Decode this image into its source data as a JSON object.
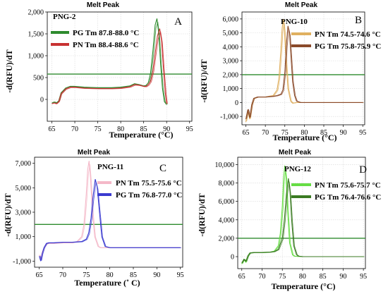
{
  "chart_data": [
    {
      "type": "line",
      "title": "Melt Peak",
      "panel_letter": "A",
      "sample_label": "PNG-2",
      "xlabel": "Temperature (°C)",
      "ylabel": "-d(RFU)/dT",
      "xlim": [
        64,
        95.5
      ],
      "ylim": [
        -500,
        2000
      ],
      "xticks": [
        65,
        70,
        75,
        80,
        85,
        90,
        95
      ],
      "yticks": [
        0,
        500,
        1000,
        1500,
        2000
      ],
      "ytick_labels": [
        "0",
        "500",
        "1,000",
        "1,500",
        "2,000"
      ],
      "threshold": 580,
      "grid": true,
      "legend_position": "top-left",
      "series": [
        {
          "name": "PG Tm 87.8-88.0 °C",
          "color": "#2e8b2e",
          "x": [
            65,
            65.5,
            66,
            66.5,
            67,
            68,
            69,
            70,
            72,
            75,
            78,
            80,
            82,
            83,
            84,
            85,
            85.5,
            86,
            86.5,
            87,
            87.5,
            87.9,
            88.3,
            88.7,
            89.1,
            89.5,
            90
          ],
          "y": [
            -80,
            -60,
            -80,
            -30,
            150,
            260,
            300,
            300,
            280,
            270,
            270,
            280,
            310,
            360,
            340,
            310,
            320,
            380,
            600,
            1100,
            1700,
            1850,
            1500,
            800,
            250,
            -50,
            -120
          ]
        },
        {
          "name": "PN Tm 88.4-88.6 °C",
          "color": "#c83232",
          "x": [
            65,
            65.5,
            66,
            66.5,
            67,
            68,
            69,
            70,
            72,
            75,
            78,
            80,
            82,
            83,
            84,
            85,
            85.5,
            86,
            86.5,
            87,
            87.5,
            88,
            88.5,
            88.9,
            89.3,
            89.7,
            90
          ],
          "y": [
            -100,
            -80,
            -100,
            -50,
            130,
            240,
            280,
            280,
            260,
            250,
            250,
            260,
            290,
            340,
            330,
            300,
            300,
            340,
            420,
            650,
            1050,
            1450,
            1620,
            1350,
            700,
            150,
            -100
          ]
        }
      ]
    },
    {
      "type": "line",
      "title": "Melt Peak",
      "panel_letter": "B",
      "sample_label": "PNG-10",
      "xlabel": "Temperature (°C)",
      "ylabel": "-d(RFU)/dT",
      "xlim": [
        64,
        95.5
      ],
      "ylim": [
        -1600,
        6500
      ],
      "xticks": [
        65,
        70,
        75,
        80,
        85,
        90,
        95
      ],
      "yticks": [
        -1000,
        0,
        1000,
        2000,
        3000,
        4000,
        5000,
        6000
      ],
      "ytick_labels": [
        "-1,000",
        "0",
        "1,000",
        "2,000",
        "3,000",
        "4,000",
        "5,000",
        "6,000"
      ],
      "threshold": 2000,
      "grid": true,
      "legend_position": "top-right",
      "series": [
        {
          "name": "PN Tm  74.5-74.6 °C",
          "color": "#e0b060",
          "x": [
            65,
            65.5,
            66,
            66.5,
            67,
            68,
            70,
            72,
            73,
            73.5,
            74,
            74.3,
            74.6,
            74.9,
            75.3,
            75.8,
            76.5,
            77,
            78,
            80,
            85,
            90,
            95
          ],
          "y": [
            -1400,
            -600,
            -1200,
            -200,
            300,
            400,
            400,
            500,
            900,
            1800,
            3800,
            5300,
            6000,
            5200,
            3000,
            1000,
            100,
            -50,
            0,
            0,
            0,
            0,
            0
          ]
        },
        {
          "name": "PG Tm  75.8-75.9 °C",
          "color": "#8a4a2a",
          "x": [
            65,
            65.5,
            66,
            66.5,
            67,
            68,
            70,
            72,
            73,
            74,
            74.5,
            75,
            75.4,
            75.8,
            76.2,
            76.6,
            77,
            77.5,
            78,
            79,
            80,
            85,
            90,
            95
          ],
          "y": [
            -1200,
            -500,
            -1100,
            -150,
            300,
            400,
            400,
            450,
            500,
            600,
            900,
            2200,
            4200,
            5500,
            5000,
            3200,
            1500,
            500,
            100,
            0,
            0,
            0,
            0,
            0
          ]
        }
      ]
    },
    {
      "type": "line",
      "title": "Melt Peak",
      "panel_letter": "C",
      "sample_label": "PNG-11",
      "xlabel": "Temperature (˚ C)",
      "ylabel": "-d(RFU)/dT",
      "xlim": [
        64,
        95.5
      ],
      "ylim": [
        -1500,
        7500
      ],
      "xticks": [
        65,
        70,
        75,
        80,
        85,
        90,
        95
      ],
      "yticks": [
        -1000,
        1000,
        3000,
        5000,
        7000
      ],
      "ytick_labels": [
        "-1,000",
        "1,000",
        "3,000",
        "5,000",
        "7,000"
      ],
      "threshold": 2000,
      "grid": false,
      "legend_position": "top-right",
      "series": [
        {
          "name": "PN Tm 75.5-75.6 °C",
          "color": "#f4b8c8",
          "x": [
            65,
            65.3,
            65.6,
            66,
            66.5,
            67,
            68,
            70,
            72,
            73,
            74,
            74.5,
            75,
            75.3,
            75.6,
            75.9,
            76.3,
            76.8,
            77.5,
            78,
            80,
            85,
            90,
            95
          ],
          "y": [
            -500,
            -900,
            -300,
            100,
            400,
            450,
            450,
            500,
            500,
            600,
            1000,
            2000,
            4500,
            6500,
            7200,
            5800,
            3000,
            1000,
            200,
            100,
            100,
            100,
            100,
            100
          ]
        },
        {
          "name": "PG Tm 76.8-77.0 °C",
          "color": "#3a3ad0",
          "x": [
            65,
            65.3,
            65.6,
            66,
            66.5,
            67,
            68,
            70,
            72,
            74,
            75,
            75.5,
            76,
            76.4,
            76.9,
            77.3,
            77.8,
            78.3,
            79,
            80,
            85,
            90,
            95
          ],
          "y": [
            -600,
            -1000,
            -400,
            100,
            450,
            500,
            500,
            550,
            550,
            600,
            800,
            1300,
            2500,
            4200,
            5700,
            5100,
            3000,
            1000,
            200,
            100,
            100,
            100,
            100
          ]
        }
      ]
    },
    {
      "type": "line",
      "title": "Melt Peak",
      "panel_letter": "D",
      "sample_label": "PNG-12",
      "xlabel": "Temperature (°C)",
      "ylabel": "-d(RFU)/dT",
      "xlim": [
        64,
        95.5
      ],
      "ylim": [
        -1300,
        10800
      ],
      "xticks": [
        65,
        70,
        75,
        80,
        85,
        90,
        95
      ],
      "yticks": [
        0,
        2000,
        4000,
        6000,
        8000,
        10000
      ],
      "ytick_labels": [
        "0",
        "2,000",
        "4,000",
        "6,000",
        "8,000",
        "10,000"
      ],
      "threshold": 2000,
      "grid": true,
      "legend_position": "top-right",
      "series": [
        {
          "name": "PN Tm  75.6-75.7 °C",
          "color": "#66dd44",
          "x": [
            65,
            65.5,
            66,
            66.5,
            67,
            68,
            70,
            72,
            73,
            74,
            74.5,
            75,
            75.3,
            75.6,
            75.9,
            76.3,
            76.8,
            77.5,
            78,
            80,
            85,
            90,
            95
          ],
          "y": [
            -800,
            -300,
            -600,
            100,
            400,
            450,
            450,
            500,
            600,
            1200,
            2500,
            5500,
            8500,
            9900,
            8800,
            5000,
            1500,
            200,
            50,
            0,
            0,
            0,
            0
          ]
        },
        {
          "name": "PG Tm  76.4-76.6 °C",
          "color": "#3a7a22",
          "x": [
            65,
            65.5,
            66,
            66.5,
            67,
            68,
            70,
            72,
            73,
            74,
            75,
            75.5,
            76,
            76.5,
            76.9,
            77.3,
            77.8,
            78.5,
            79,
            80,
            85,
            90,
            95
          ],
          "y": [
            -700,
            -300,
            -500,
            100,
            400,
            450,
            450,
            500,
            550,
            800,
            2000,
            4000,
            6800,
            8500,
            7000,
            4000,
            1200,
            200,
            50,
            0,
            0,
            0,
            0
          ]
        }
      ]
    }
  ]
}
